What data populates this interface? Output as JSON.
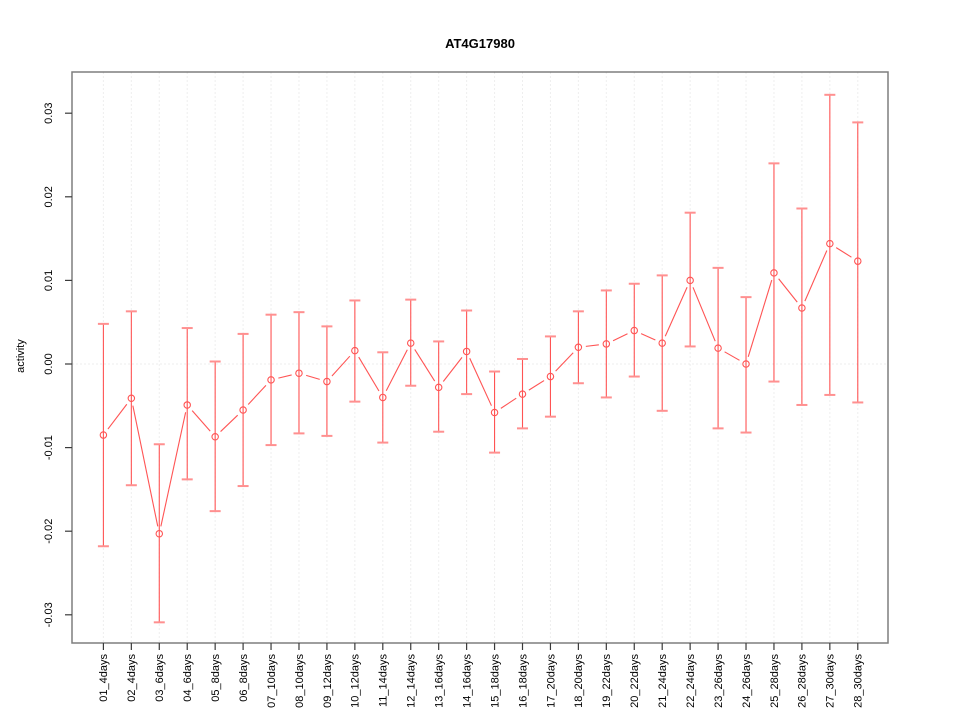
{
  "chart_data": {
    "type": "line",
    "title": "AT4G17980",
    "xlabel": "",
    "ylabel": "activity",
    "categories": [
      "01_4days",
      "02_4days",
      "03_6days",
      "04_6days",
      "05_8days",
      "06_8days",
      "07_10days",
      "08_10days",
      "09_12days",
      "10_12days",
      "11_14days",
      "12_14days",
      "13_16days",
      "14_16days",
      "15_18days",
      "16_18days",
      "17_20days",
      "18_20days",
      "19_22days",
      "20_22days",
      "21_24days",
      "22_24days",
      "23_26days",
      "24_26days",
      "25_28days",
      "26_28days",
      "27_30days",
      "28_30days"
    ],
    "series": [
      {
        "name": "activity",
        "values": [
          -0.0085,
          -0.0041,
          -0.0203,
          -0.0049,
          -0.0087,
          -0.0055,
          -0.0019,
          -0.0011,
          -0.0021,
          0.0016,
          -0.004,
          0.0025,
          -0.0028,
          0.0015,
          -0.0058,
          -0.0036,
          -0.0015,
          0.002,
          0.0024,
          0.004,
          0.0025,
          0.01,
          0.0019,
          0.0,
          0.0109,
          0.0067,
          0.0144,
          0.0123
        ],
        "upper": [
          0.0048,
          0.0063,
          -0.0096,
          0.0043,
          0.0003,
          0.0036,
          0.0059,
          0.0062,
          0.0045,
          0.0076,
          0.0014,
          0.0077,
          0.0027,
          0.0064,
          -0.0009,
          0.0006,
          0.0033,
          0.0063,
          0.0088,
          0.0096,
          0.0106,
          0.0181,
          0.0115,
          0.008,
          0.024,
          0.0186,
          0.0322,
          0.0289
        ],
        "lower": [
          -0.0218,
          -0.0145,
          -0.0309,
          -0.0138,
          -0.0176,
          -0.0146,
          -0.0097,
          -0.0083,
          -0.0086,
          -0.0045,
          -0.0094,
          -0.0026,
          -0.0081,
          -0.0036,
          -0.0106,
          -0.0077,
          -0.0063,
          -0.0023,
          -0.004,
          -0.0015,
          -0.0056,
          0.0021,
          -0.0077,
          -0.0082,
          -0.0021,
          -0.0049,
          -0.0037,
          -0.0046
        ]
      }
    ],
    "ylim": [
      -0.0334,
      0.0349
    ],
    "yticks": [
      0.03,
      0.02,
      0.01,
      0.0,
      -0.01,
      -0.02,
      -0.03
    ],
    "grid": {
      "vertical_dotted": true,
      "horizontal_zero_dotted": true
    },
    "legend_position": "none",
    "point_style": "open-circle",
    "error_bars": true,
    "colors": {
      "series": "#ff5454",
      "series_light": "#ff9090",
      "grid": "#dedede",
      "zero_line": "#dcdcdc",
      "frame": "#7e7e7e",
      "tick": "#3a3a3a",
      "text": "#000000",
      "background": "#ffffff"
    }
  }
}
